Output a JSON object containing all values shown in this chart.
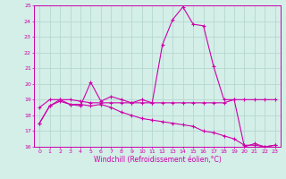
{
  "title": "",
  "xlabel": "Windchill (Refroidissement éolien,°C)",
  "ylabel": "",
  "xlim": [
    -0.5,
    23.5
  ],
  "ylim": [
    16,
    25
  ],
  "yticks": [
    16,
    17,
    18,
    19,
    20,
    21,
    22,
    23,
    24,
    25
  ],
  "xticks": [
    0,
    1,
    2,
    3,
    4,
    5,
    6,
    7,
    8,
    9,
    10,
    11,
    12,
    13,
    14,
    15,
    16,
    17,
    18,
    19,
    20,
    21,
    22,
    23
  ],
  "bg_color": "#d4eee8",
  "grid_color": "#b0d4cc",
  "line_color": "#cc00aa",
  "line1_x": [
    0,
    1,
    2,
    3,
    4,
    5,
    6,
    7,
    8,
    9,
    10,
    11,
    12,
    13,
    14,
    15,
    16,
    17,
    18,
    19,
    20,
    21,
    22,
    23
  ],
  "line1_y": [
    17.5,
    18.6,
    18.9,
    18.7,
    18.6,
    20.1,
    18.9,
    19.2,
    19.0,
    18.8,
    19.0,
    18.8,
    22.5,
    24.1,
    24.9,
    23.8,
    23.7,
    21.1,
    19.0,
    19.0,
    16.0,
    16.2,
    16.0,
    16.1
  ],
  "line2_x": [
    0,
    1,
    2,
    3,
    4,
    5,
    6,
    7,
    8,
    9,
    10,
    11,
    12,
    13,
    14,
    15,
    16,
    17,
    18,
    19,
    20,
    21,
    22,
    23
  ],
  "line2_y": [
    17.5,
    18.6,
    19.0,
    18.7,
    18.7,
    18.6,
    18.7,
    18.5,
    18.2,
    18.0,
    17.8,
    17.7,
    17.6,
    17.5,
    17.4,
    17.3,
    17.0,
    16.9,
    16.7,
    16.5,
    16.1,
    16.1,
    16.0,
    16.1
  ],
  "line3_x": [
    0,
    1,
    2,
    3,
    4,
    5,
    6,
    7,
    8,
    9,
    10,
    11,
    12,
    13,
    14,
    15,
    16,
    17,
    18,
    19,
    20,
    21,
    22,
    23
  ],
  "line3_y": [
    18.5,
    19.0,
    19.0,
    19.0,
    18.9,
    18.8,
    18.8,
    18.8,
    18.8,
    18.8,
    18.8,
    18.8,
    18.8,
    18.8,
    18.8,
    18.8,
    18.8,
    18.8,
    18.8,
    19.0,
    19.0,
    19.0,
    19.0,
    19.0
  ]
}
